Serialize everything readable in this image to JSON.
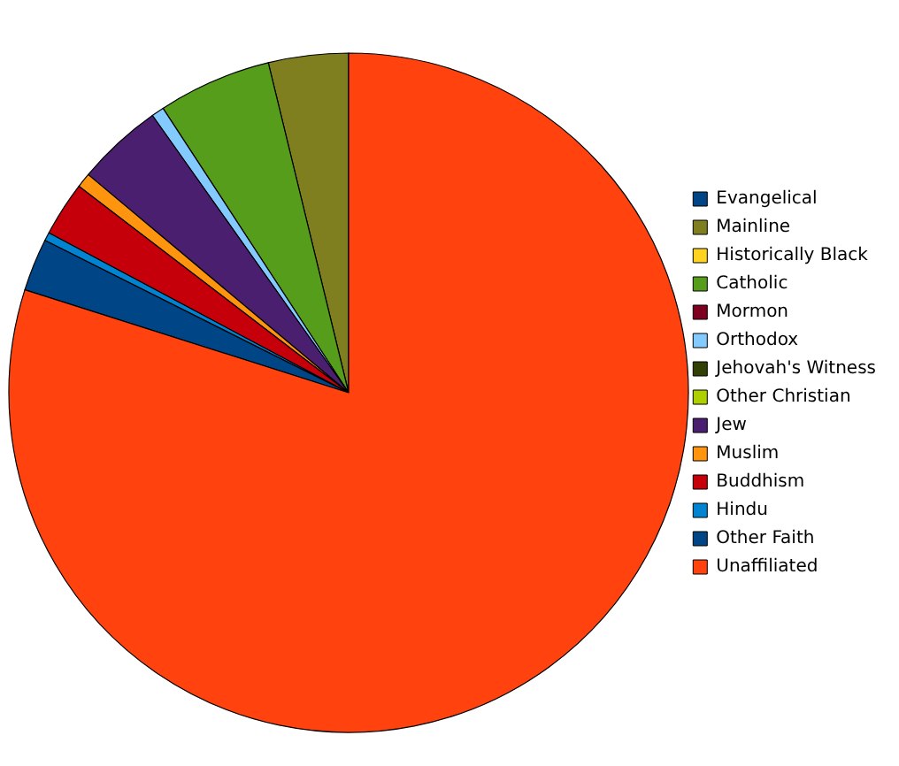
{
  "chart_data": {
    "type": "pie",
    "categories": [
      "Evangelical",
      "Mainline",
      "Historically Black",
      "Catholic",
      "Mormon",
      "Orthodox",
      "Jehovah's Witness",
      "Other Christian",
      "Jew",
      "Muslim",
      "Buddhism",
      "Hindu",
      "Other Faith",
      "Unaffiliated"
    ],
    "values": [
      0,
      3.8,
      0,
      5.4,
      0,
      0.6,
      0,
      0,
      4.1,
      0.7,
      2.6,
      0.4,
      2.5,
      79.9
    ],
    "colors": [
      "#004586",
      "#7f7f20",
      "#ffd320",
      "#579d1c",
      "#7e0021",
      "#83caff",
      "#314004",
      "#aecf00",
      "#4b1f6f",
      "#ff950e",
      "#c5000b",
      "#0084d1",
      "#004586",
      "#ff420e"
    ],
    "legend": "right"
  }
}
